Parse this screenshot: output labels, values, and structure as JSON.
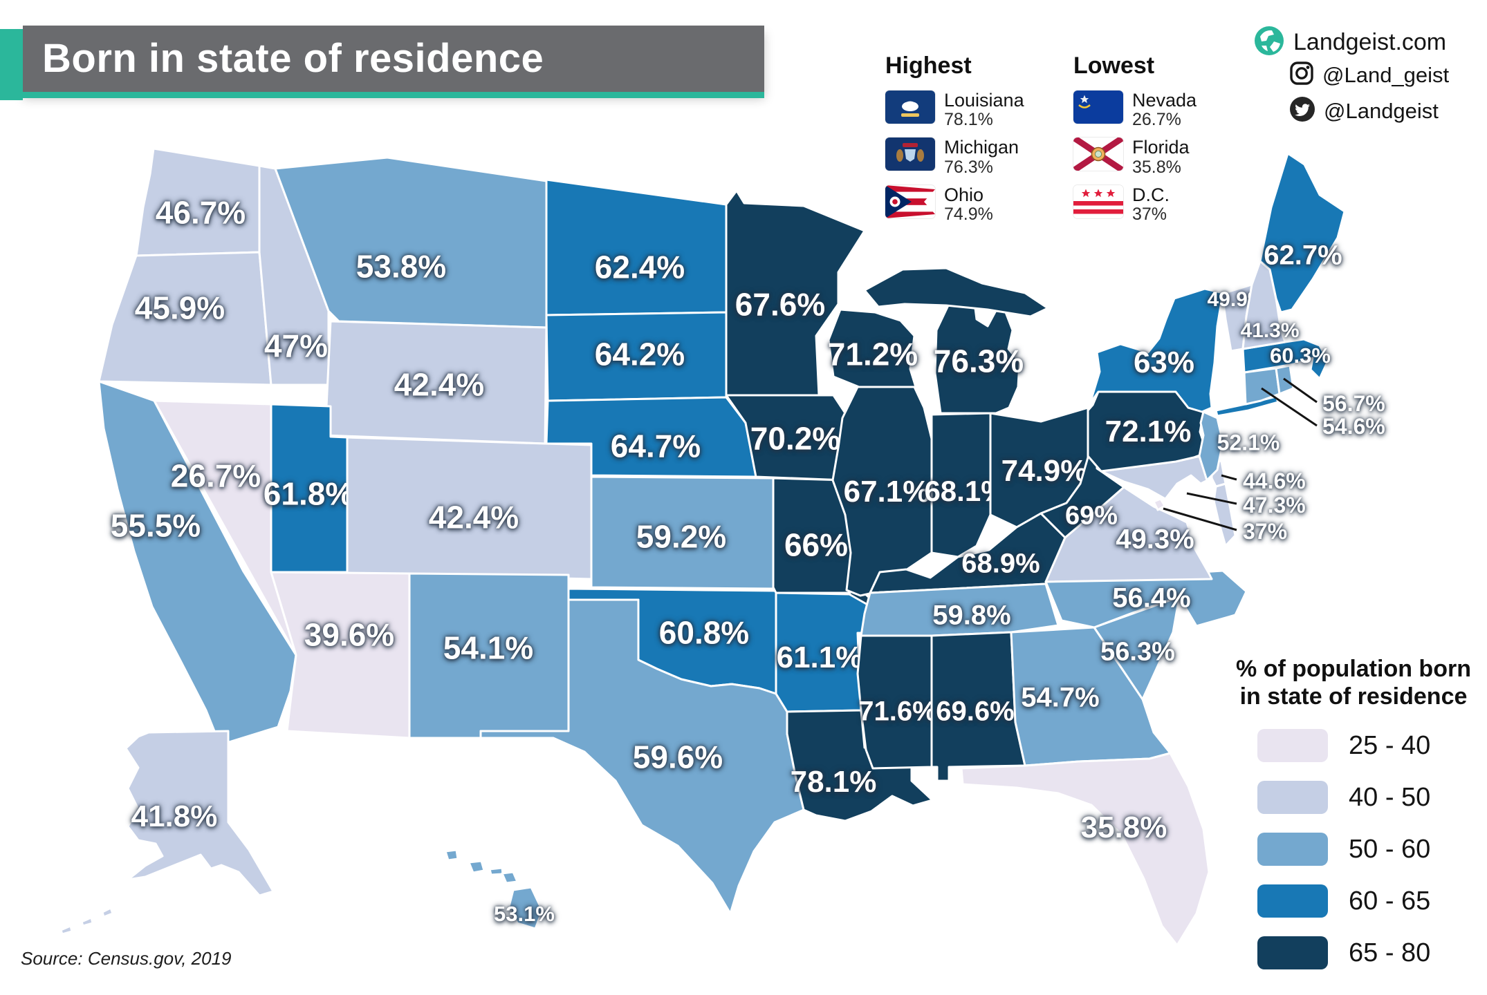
{
  "header": {
    "title": "Born in state of residence"
  },
  "branding": {
    "site": "Landgeist.com",
    "instagram_handle": "@Land_geist",
    "twitter_handle": "@Landgeist"
  },
  "extremes": {
    "highest_label": "Highest",
    "lowest_label": "Lowest",
    "highest": [
      {
        "name": "Louisiana",
        "value": "78.1%",
        "flag": "louisiana-flag"
      },
      {
        "name": "Michigan",
        "value": "76.3%",
        "flag": "michigan-flag"
      },
      {
        "name": "Ohio",
        "value": "74.9%",
        "flag": "ohio-flag"
      }
    ],
    "lowest": [
      {
        "name": "Nevada",
        "value": "26.7%",
        "flag": "nevada-flag"
      },
      {
        "name": "Florida",
        "value": "35.8%",
        "flag": "florida-flag"
      },
      {
        "name": "D.C.",
        "value": "37%",
        "flag": "dc-flag"
      }
    ]
  },
  "legend": {
    "title_line1": "% of population born",
    "title_line2": "in state of residence",
    "bins": [
      {
        "range": "25 - 40",
        "color": "#e9e4f0"
      },
      {
        "range": "40 - 50",
        "color": "#c5cfe5"
      },
      {
        "range": "50 - 60",
        "color": "#74a8cf"
      },
      {
        "range": "60 - 65",
        "color": "#1878b5"
      },
      {
        "range": "65 - 80",
        "color": "#123f5d"
      }
    ]
  },
  "source": "Source: Census.gov, 2019",
  "map": {
    "states": [
      {
        "id": "WA",
        "name": "Washington",
        "value": "46.7%",
        "bin": 1
      },
      {
        "id": "OR",
        "name": "Oregon",
        "value": "45.9%",
        "bin": 1
      },
      {
        "id": "CA",
        "name": "California",
        "value": "55.5%",
        "bin": 2
      },
      {
        "id": "NV",
        "name": "Nevada",
        "value": "26.7%",
        "bin": 0
      },
      {
        "id": "ID",
        "name": "Idaho",
        "value": "47%",
        "bin": 1
      },
      {
        "id": "MT",
        "name": "Montana",
        "value": "53.8%",
        "bin": 2
      },
      {
        "id": "WY",
        "name": "Wyoming",
        "value": "42.4%",
        "bin": 1
      },
      {
        "id": "UT",
        "name": "Utah",
        "value": "61.8%",
        "bin": 3
      },
      {
        "id": "CO",
        "name": "Colorado",
        "value": "42.4%",
        "bin": 1
      },
      {
        "id": "AZ",
        "name": "Arizona",
        "value": "39.6%",
        "bin": 0
      },
      {
        "id": "NM",
        "name": "New Mexico",
        "value": "54.1%",
        "bin": 2
      },
      {
        "id": "ND",
        "name": "North Dakota",
        "value": "62.4%",
        "bin": 3
      },
      {
        "id": "SD",
        "name": "South Dakota",
        "value": "64.2%",
        "bin": 3
      },
      {
        "id": "NE",
        "name": "Nebraska",
        "value": "64.7%",
        "bin": 3
      },
      {
        "id": "KS",
        "name": "Kansas",
        "value": "59.2%",
        "bin": 2
      },
      {
        "id": "OK",
        "name": "Oklahoma",
        "value": "60.8%",
        "bin": 3
      },
      {
        "id": "TX",
        "name": "Texas",
        "value": "59.6%",
        "bin": 2
      },
      {
        "id": "MN",
        "name": "Minnesota",
        "value": "67.6%",
        "bin": 4
      },
      {
        "id": "IA",
        "name": "Iowa",
        "value": "70.2%",
        "bin": 4
      },
      {
        "id": "MO",
        "name": "Missouri",
        "value": "66%",
        "bin": 4
      },
      {
        "id": "AR",
        "name": "Arkansas",
        "value": "61.1%",
        "bin": 3
      },
      {
        "id": "LA",
        "name": "Louisiana",
        "value": "78.1%",
        "bin": 4
      },
      {
        "id": "WI",
        "name": "Wisconsin",
        "value": "71.2%",
        "bin": 4
      },
      {
        "id": "IL",
        "name": "Illinois",
        "value": "67.1%",
        "bin": 4
      },
      {
        "id": "MI",
        "name": "Michigan",
        "value": "76.3%",
        "bin": 4
      },
      {
        "id": "IN",
        "name": "Indiana",
        "value": "68.1%",
        "bin": 4
      },
      {
        "id": "OH",
        "name": "Ohio",
        "value": "74.9%",
        "bin": 4
      },
      {
        "id": "KY",
        "name": "Kentucky",
        "value": "68.9%",
        "bin": 4
      },
      {
        "id": "TN",
        "name": "Tennessee",
        "value": "59.8%",
        "bin": 2
      },
      {
        "id": "MS",
        "name": "Mississippi",
        "value": "71.6%",
        "bin": 4
      },
      {
        "id": "AL",
        "name": "Alabama",
        "value": "69.6%",
        "bin": 4
      },
      {
        "id": "GA",
        "name": "Georgia",
        "value": "54.7%",
        "bin": 2
      },
      {
        "id": "FL",
        "name": "Florida",
        "value": "35.8%",
        "bin": 0
      },
      {
        "id": "SC",
        "name": "South Carolina",
        "value": "56.3%",
        "bin": 2
      },
      {
        "id": "NC",
        "name": "North Carolina",
        "value": "56.4%",
        "bin": 2
      },
      {
        "id": "VA",
        "name": "Virginia",
        "value": "49.3%",
        "bin": 1
      },
      {
        "id": "WV",
        "name": "West Virginia",
        "value": "69%",
        "bin": 4
      },
      {
        "id": "MD",
        "name": "Maryland",
        "value": "47.3%",
        "bin": 1,
        "callout": true
      },
      {
        "id": "DE",
        "name": "Delaware",
        "value": "44.6%",
        "bin": 1,
        "callout": true
      },
      {
        "id": "DC",
        "name": "D.C.",
        "value": "37%",
        "bin": 0,
        "callout": true
      },
      {
        "id": "PA",
        "name": "Pennsylvania",
        "value": "72.1%",
        "bin": 4
      },
      {
        "id": "NJ",
        "name": "New Jersey",
        "value": "52.1%",
        "bin": 2
      },
      {
        "id": "NY",
        "name": "New York",
        "value": "63%",
        "bin": 3
      },
      {
        "id": "CT",
        "name": "Connecticut",
        "value": "54.6%",
        "bin": 2,
        "callout": true
      },
      {
        "id": "RI",
        "name": "Rhode Island",
        "value": "56.7%",
        "bin": 2,
        "callout": true
      },
      {
        "id": "MA",
        "name": "Massachusetts",
        "value": "60.3%",
        "bin": 3
      },
      {
        "id": "VT",
        "name": "Vermont",
        "value": "49.9%",
        "bin": 1
      },
      {
        "id": "NH",
        "name": "New Hampshire",
        "value": "41.3%",
        "bin": 1
      },
      {
        "id": "ME",
        "name": "Maine",
        "value": "62.7%",
        "bin": 3
      },
      {
        "id": "AK",
        "name": "Alaska",
        "value": "41.8%",
        "bin": 1
      },
      {
        "id": "HI",
        "name": "Hawaii",
        "value": "53.1%",
        "bin": 2
      }
    ]
  }
}
